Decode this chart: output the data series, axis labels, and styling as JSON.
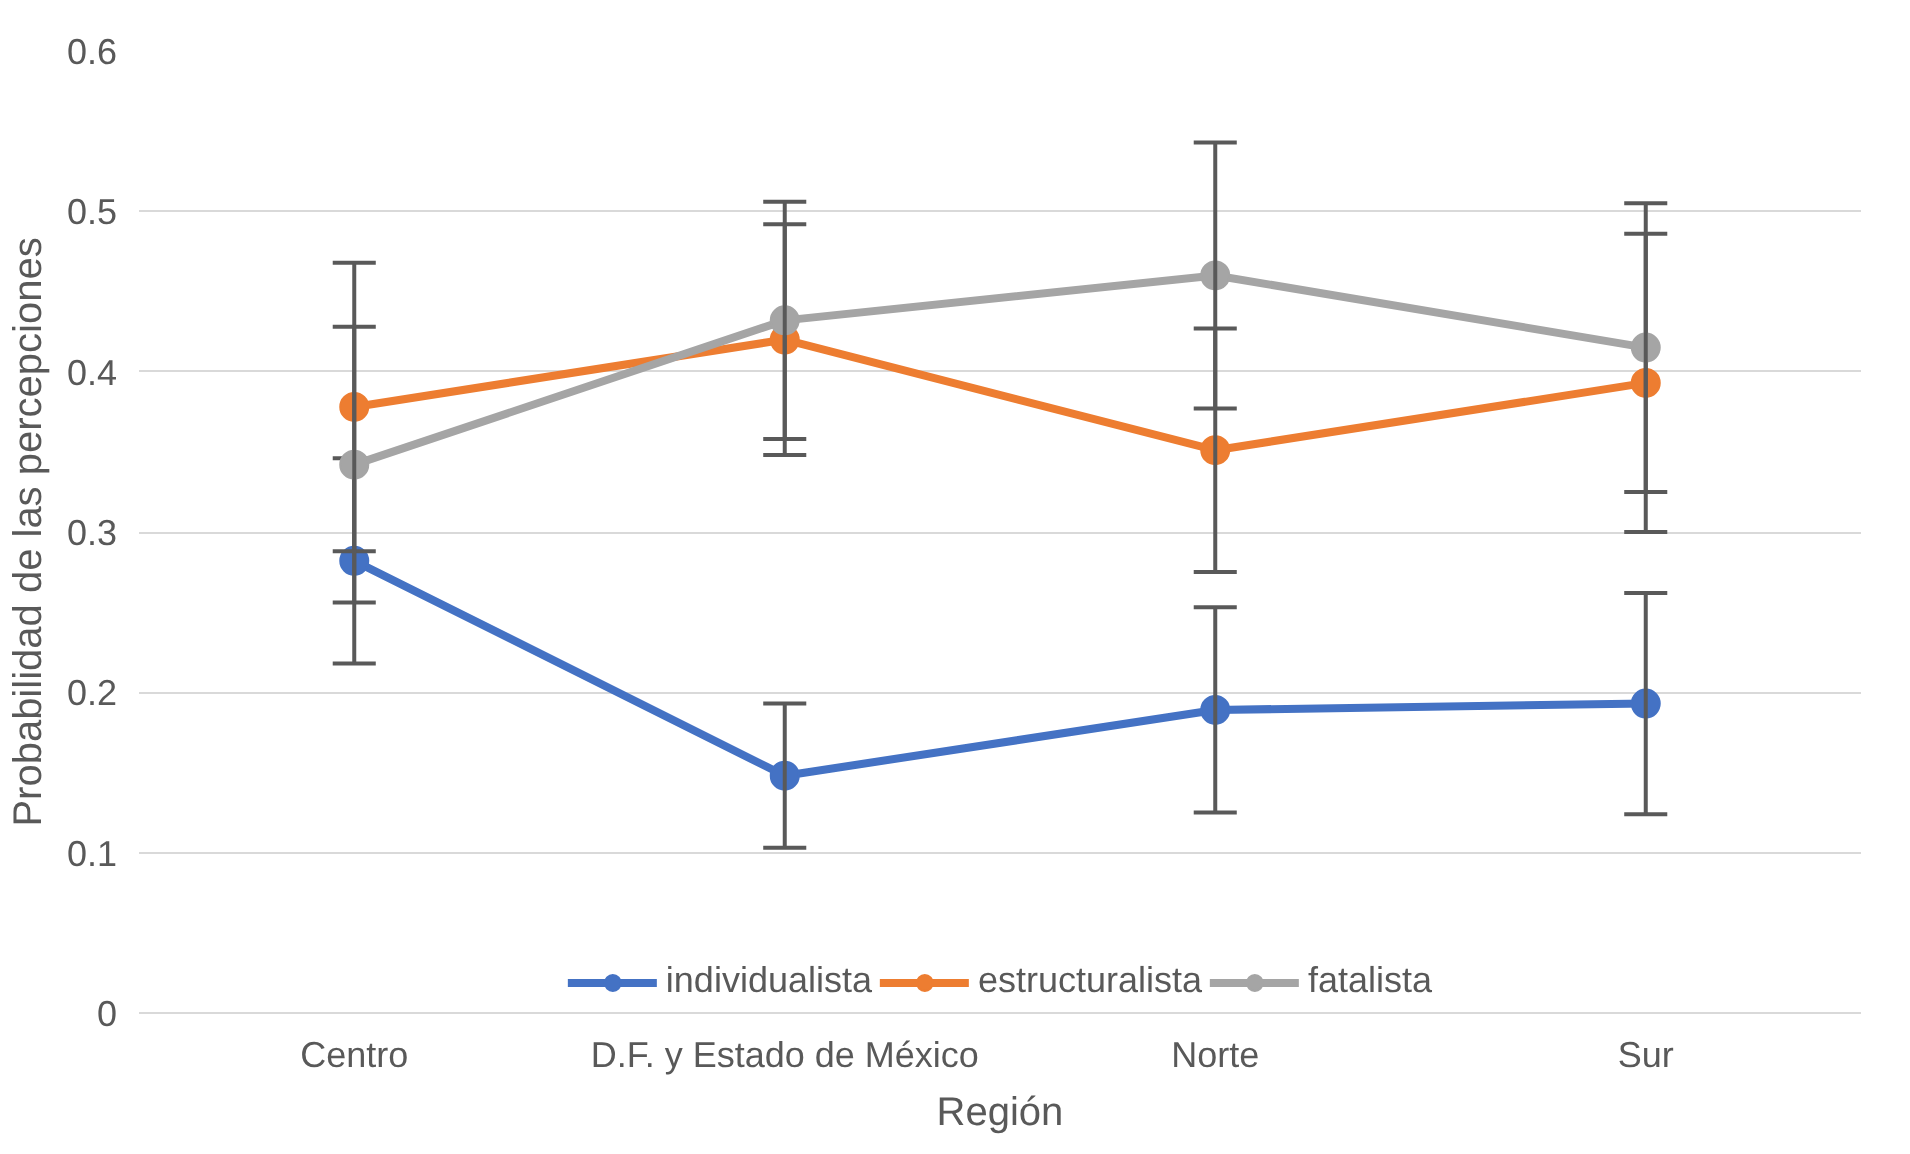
{
  "chart_data": {
    "type": "line",
    "xlabel": "Región",
    "ylabel": "Probabilidad de las percepciones",
    "categories": [
      "Centro",
      "D.F. y Estado de México",
      "Norte",
      "Sur"
    ],
    "series": [
      {
        "name": "individualista",
        "color": "#4472c4",
        "values": [
          0.282,
          0.148,
          0.189,
          0.193
        ],
        "errors": [
          0.064,
          0.045,
          0.064,
          0.069
        ]
      },
      {
        "name": "estructuralista",
        "color": "#ed7d31",
        "values": [
          0.378,
          0.42,
          0.351,
          0.393
        ],
        "errors": [
          0.09,
          0.072,
          0.076,
          0.093
        ]
      },
      {
        "name": "fatalista",
        "color": "#a5a5a5",
        "values": [
          0.342,
          0.432,
          0.46,
          0.415
        ],
        "errors": [
          0.086,
          0.074,
          0.083,
          0.09
        ]
      }
    ],
    "ylim": [
      0,
      0.6
    ],
    "yticks": [
      0,
      0.1,
      0.2,
      0.3,
      0.4,
      0.5,
      0.6
    ],
    "grid": "y",
    "legend": "bottom",
    "marker": "circle",
    "line_style": "solid"
  }
}
